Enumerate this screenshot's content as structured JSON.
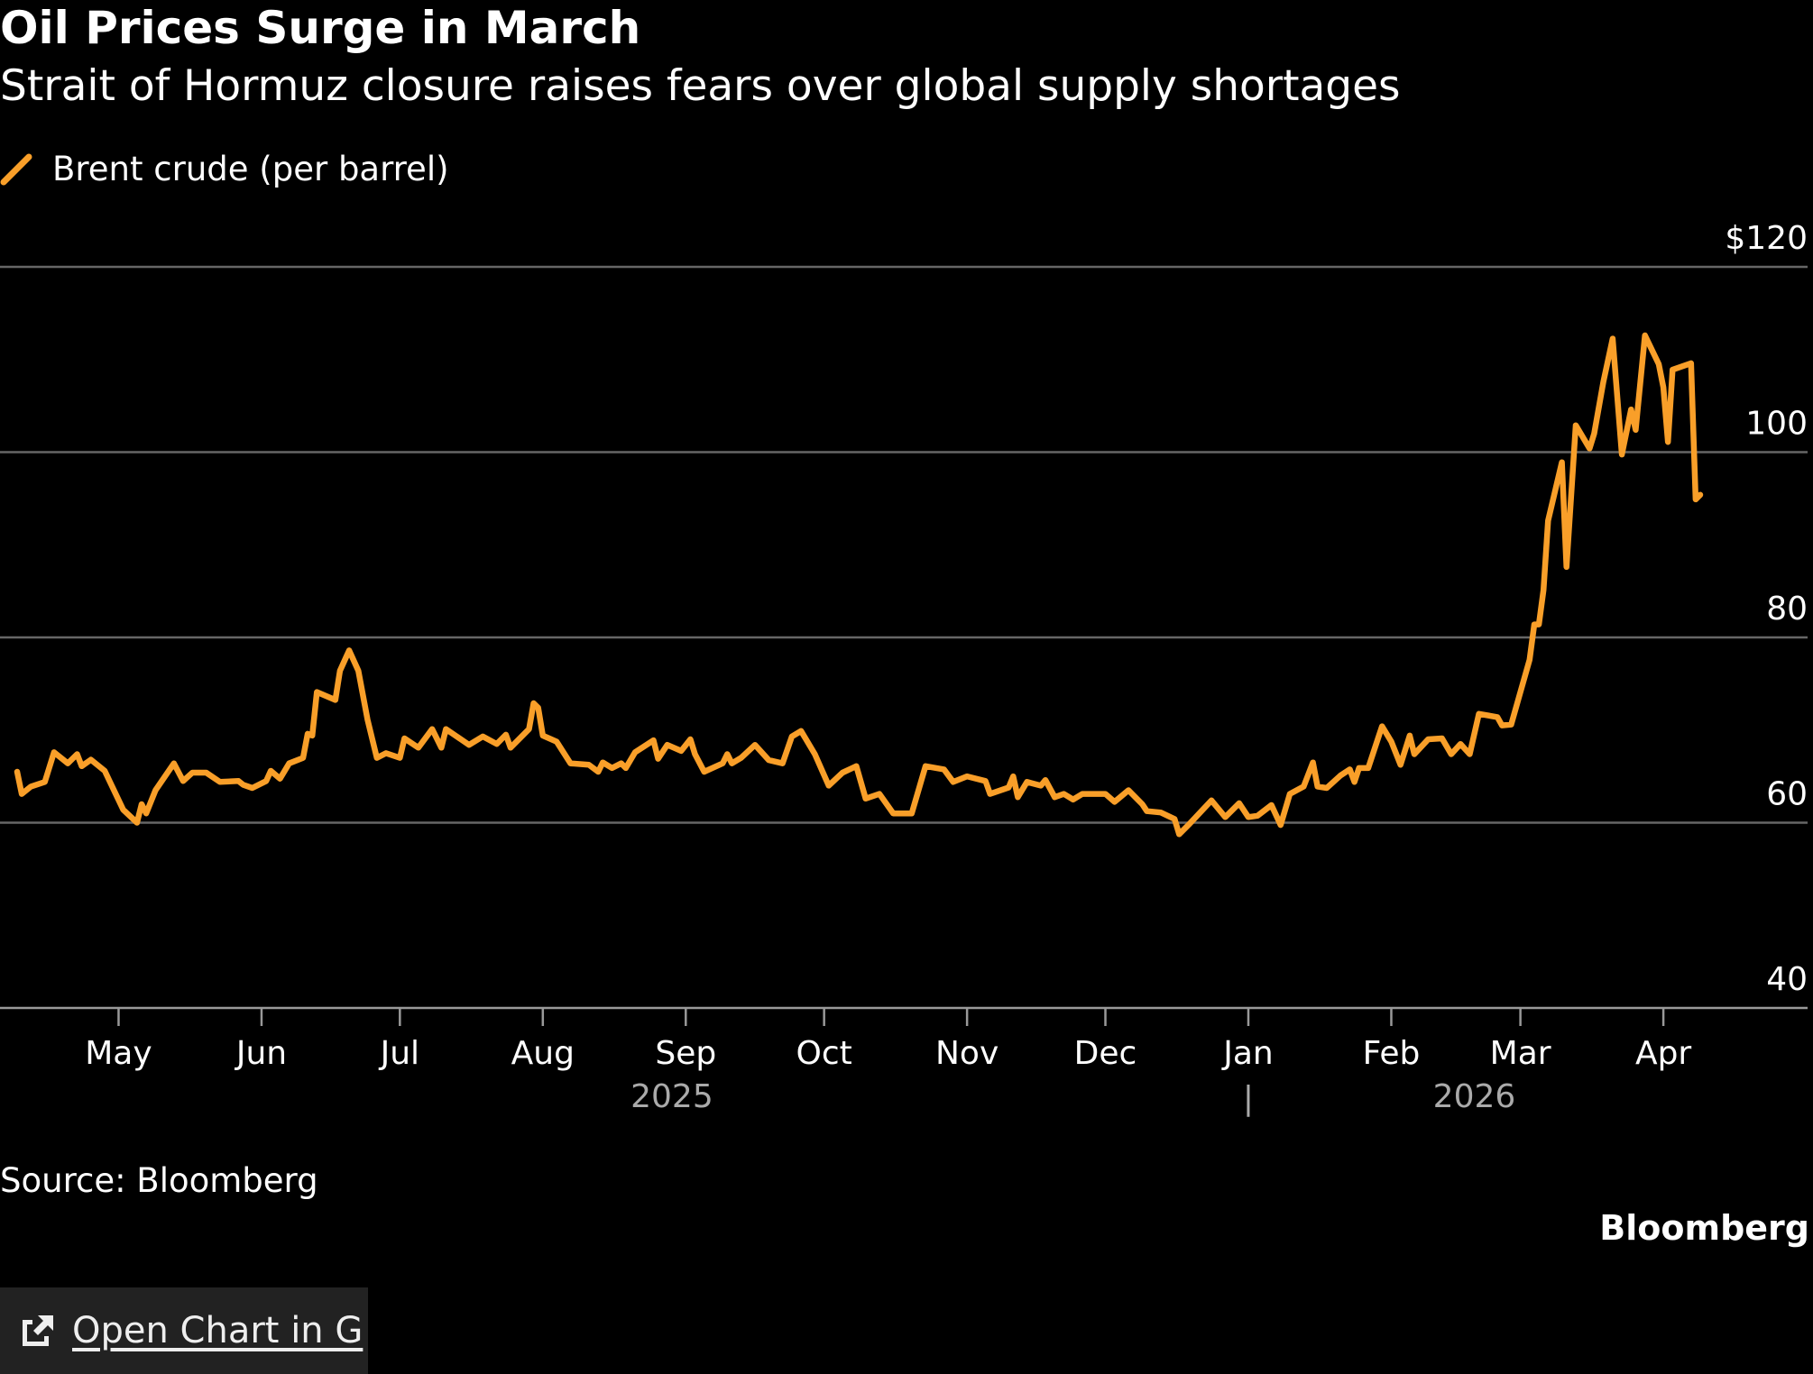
{
  "title": "Oil Prices Surge in March",
  "subtitle": "Strait of Hormuz closure raises fears over global supply shortages",
  "source": "Source: Bloomberg",
  "logo": "Bloomberg",
  "open_chart_button": {
    "label": "Open Chart in G",
    "icon": "external-link-icon"
  },
  "colors": {
    "line": "#f99f29",
    "background": "#000000",
    "grid": "#666666",
    "button_bg": "#222222"
  },
  "chart_data": {
    "type": "line",
    "title": "Oil Prices Surge in March",
    "subtitle": "Strait of Hormuz closure raises fears over global supply shortages",
    "legend": "top-left",
    "grid": true,
    "ylim": [
      40,
      120
    ],
    "yticks": [
      {
        "value": 120,
        "label": "$120"
      },
      {
        "value": 100,
        "label": "100"
      },
      {
        "value": 80,
        "label": "80"
      },
      {
        "value": 60,
        "label": "60"
      },
      {
        "value": 40,
        "label": "40"
      }
    ],
    "xlim": [
      "2025-04-09",
      "2026-04-09"
    ],
    "xticks": [
      {
        "date": "2025-05-01",
        "label": "May"
      },
      {
        "date": "2025-06-01",
        "label": "Jun"
      },
      {
        "date": "2025-07-01",
        "label": "Jul"
      },
      {
        "date": "2025-08-01",
        "label": "Aug"
      },
      {
        "date": "2025-09-01",
        "label": "Sep"
      },
      {
        "date": "2025-10-01",
        "label": "Oct"
      },
      {
        "date": "2025-11-01",
        "label": "Nov"
      },
      {
        "date": "2025-12-01",
        "label": "Dec"
      },
      {
        "date": "2026-01-01",
        "label": "Jan"
      },
      {
        "date": "2026-02-01",
        "label": "Feb"
      },
      {
        "date": "2026-03-01",
        "label": "Mar"
      },
      {
        "date": "2026-04-01",
        "label": "Apr"
      }
    ],
    "year_labels": [
      {
        "date": "2025-08-29",
        "label": "2025"
      },
      {
        "date": "2026-02-19",
        "label": "2026"
      }
    ],
    "year_separator": {
      "date": "2026-01-01",
      "label": "|"
    },
    "series": [
      {
        "name": "Brent crude (per barrel)",
        "x": [
          "2025-04-09",
          "2025-04-10",
          "2025-04-12",
          "2025-04-15",
          "2025-04-17",
          "2025-04-20",
          "2025-04-22",
          "2025-04-23",
          "2025-04-25",
          "2025-04-28",
          "2025-05-02",
          "2025-05-05",
          "2025-05-06",
          "2025-05-07",
          "2025-05-09",
          "2025-05-13",
          "2025-05-15",
          "2025-05-17",
          "2025-05-20",
          "2025-05-23",
          "2025-05-27",
          "2025-05-28",
          "2025-05-30",
          "2025-06-02",
          "2025-06-03",
          "2025-06-05",
          "2025-06-07",
          "2025-06-10",
          "2025-06-11",
          "2025-06-12",
          "2025-06-13",
          "2025-06-17",
          "2025-06-18",
          "2025-06-20",
          "2025-06-22",
          "2025-06-24",
          "2025-06-26",
          "2025-06-28",
          "2025-07-01",
          "2025-07-02",
          "2025-07-05",
          "2025-07-08",
          "2025-07-10",
          "2025-07-11",
          "2025-07-16",
          "2025-07-19",
          "2025-07-22",
          "2025-07-24",
          "2025-07-25",
          "2025-07-29",
          "2025-07-30",
          "2025-07-31",
          "2025-08-01",
          "2025-08-04",
          "2025-08-07",
          "2025-08-11",
          "2025-08-13",
          "2025-08-14",
          "2025-08-16",
          "2025-08-18",
          "2025-08-19",
          "2025-08-21",
          "2025-08-25",
          "2025-08-26",
          "2025-08-28",
          "2025-08-31",
          "2025-09-02",
          "2025-09-03",
          "2025-09-05",
          "2025-09-09",
          "2025-09-10",
          "2025-09-11",
          "2025-09-13",
          "2025-09-16",
          "2025-09-19",
          "2025-09-22",
          "2025-09-24",
          "2025-09-26",
          "2025-09-29",
          "2025-10-02",
          "2025-10-05",
          "2025-10-08",
          "2025-10-10",
          "2025-10-13",
          "2025-10-16",
          "2025-10-20",
          "2025-10-23",
          "2025-10-27",
          "2025-10-29",
          "2025-11-01",
          "2025-11-05",
          "2025-11-06",
          "2025-11-10",
          "2025-11-11",
          "2025-11-12",
          "2025-11-14",
          "2025-11-17",
          "2025-11-18",
          "2025-11-20",
          "2025-11-22",
          "2025-11-24",
          "2025-11-26",
          "2025-12-01",
          "2025-12-03",
          "2025-12-06",
          "2025-12-09",
          "2025-12-10",
          "2025-12-13",
          "2025-12-16",
          "2025-12-17",
          "2025-12-19",
          "2025-12-24",
          "2025-12-27",
          "2025-12-30",
          "2026-01-01",
          "2026-01-03",
          "2026-01-06",
          "2026-01-08",
          "2026-01-10",
          "2026-01-13",
          "2026-01-15",
          "2026-01-16",
          "2026-01-18",
          "2026-01-21",
          "2026-01-23",
          "2026-01-24",
          "2026-01-25",
          "2026-01-27",
          "2026-01-30",
          "2026-02-01",
          "2026-02-03",
          "2026-02-05",
          "2026-02-06",
          "2026-02-09",
          "2026-02-12",
          "2026-02-14",
          "2026-02-16",
          "2026-02-18",
          "2026-02-20",
          "2026-02-24",
          "2026-02-25",
          "2026-02-27",
          "2026-03-03",
          "2026-03-04",
          "2026-03-05",
          "2026-03-06",
          "2026-03-07",
          "2026-03-10",
          "2026-03-11",
          "2026-03-13",
          "2026-03-16",
          "2026-03-17",
          "2026-03-19",
          "2026-03-21",
          "2026-03-23",
          "2026-03-25",
          "2026-03-26",
          "2026-03-28",
          "2026-03-31",
          "2026-04-01",
          "2026-04-02",
          "2026-04-03",
          "2026-04-07",
          "2026-04-08",
          "2026-04-09"
        ],
        "y": [
          65.5,
          63.1,
          63.9,
          64.4,
          67.6,
          66.4,
          67.4,
          66.1,
          66.8,
          65.6,
          61.4,
          60.0,
          62.0,
          61.0,
          63.5,
          66.4,
          64.5,
          65.4,
          65.4,
          64.4,
          64.5,
          64.1,
          63.75,
          64.5,
          65.6,
          64.75,
          66.4,
          67.0,
          69.6,
          69.4,
          74.1,
          73.25,
          76.4,
          78.6,
          76.4,
          71.1,
          67.0,
          67.5,
          67.0,
          69.1,
          68.1,
          70.1,
          68.1,
          70.1,
          68.4,
          69.3,
          68.5,
          69.5,
          68.1,
          70.1,
          72.9,
          72.4,
          69.4,
          68.75,
          66.4,
          66.25,
          65.5,
          66.5,
          65.9,
          66.4,
          65.9,
          67.6,
          68.9,
          66.9,
          68.4,
          67.75,
          69.0,
          67.4,
          65.5,
          66.4,
          67.4,
          66.4,
          67.0,
          68.4,
          66.75,
          66.4,
          69.3,
          69.9,
          67.4,
          64.0,
          65.4,
          66.1,
          62.6,
          63.1,
          61.0,
          61.0,
          66.1,
          65.75,
          64.4,
          65.0,
          64.5,
          63.1,
          63.8,
          65.0,
          62.75,
          64.4,
          64.0,
          64.6,
          62.75,
          63.1,
          62.5,
          63.1,
          63.1,
          62.25,
          63.5,
          62.0,
          61.25,
          61.1,
          60.4,
          58.75,
          59.75,
          62.4,
          60.6,
          62.1,
          60.6,
          60.75,
          61.9,
          59.75,
          63.1,
          63.9,
          66.5,
          63.9,
          63.75,
          65.1,
          65.75,
          64.4,
          65.9,
          65.9,
          70.4,
          68.75,
          66.25,
          69.4,
          67.4,
          69.0,
          69.1,
          67.4,
          68.5,
          67.4,
          71.75,
          71.4,
          70.5,
          70.6,
          77.6,
          81.4,
          81.4,
          85.1,
          92.6,
          98.9,
          87.6,
          102.9,
          100.4,
          102.0,
          107.6,
          112.25,
          99.75,
          104.6,
          102.4,
          112.6,
          109.5,
          107.0,
          101.1,
          108.9,
          109.6,
          94.9,
          95.4
        ]
      }
    ]
  }
}
